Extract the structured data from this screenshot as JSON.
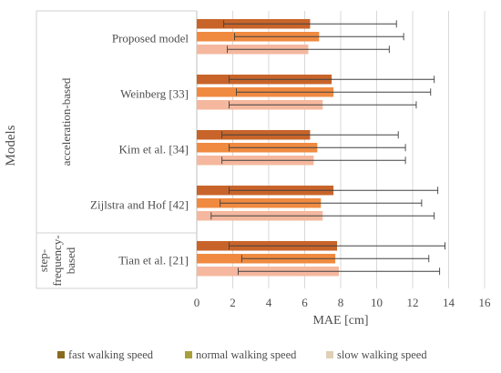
{
  "chart_data": {
    "type": "bar",
    "orientation": "horizontal",
    "title": "",
    "xlabel": "MAE [cm]",
    "ylabel": "Models",
    "xlim": [
      0,
      16
    ],
    "xticks": [
      0,
      2,
      4,
      6,
      8,
      10,
      12,
      14,
      16
    ],
    "grid": "vertical",
    "legend_position": "bottom",
    "groups": [
      {
        "label": "acceleration-based",
        "categories": [
          "Proposed model",
          "Weinberg [33]",
          "Kim et al. [34]",
          "Zijlstra and Hof [42]"
        ]
      },
      {
        "label": "step-frequency-based",
        "label_lines": [
          "step-",
          "frequency-",
          "based"
        ],
        "categories": [
          "Tian et al. [21]"
        ]
      }
    ],
    "categories": [
      "Proposed model",
      "Weinberg [33]",
      "Kim et al. [34]",
      "Zijlstra and Hof [42]",
      "Tian et al. [21]"
    ],
    "series": [
      {
        "name": "fast walking speed",
        "color": "#c8642a",
        "legend_color": "#8a6a1e",
        "values": [
          6.3,
          7.5,
          6.3,
          7.6,
          7.8
        ],
        "error": [
          4.8,
          5.7,
          4.9,
          5.8,
          6.0
        ]
      },
      {
        "name": "normal walking speed",
        "color": "#f08a40",
        "legend_color": "#a8a03a",
        "values": [
          6.8,
          7.6,
          6.7,
          6.9,
          7.7
        ],
        "error": [
          4.7,
          5.4,
          4.9,
          5.6,
          5.2
        ]
      },
      {
        "name": "slow walking speed",
        "color": "#f5b89e",
        "legend_color": "#e0d0b8",
        "values": [
          6.2,
          7.0,
          6.5,
          7.0,
          7.9
        ],
        "error": [
          4.5,
          5.2,
          5.1,
          6.2,
          5.6
        ]
      }
    ]
  }
}
